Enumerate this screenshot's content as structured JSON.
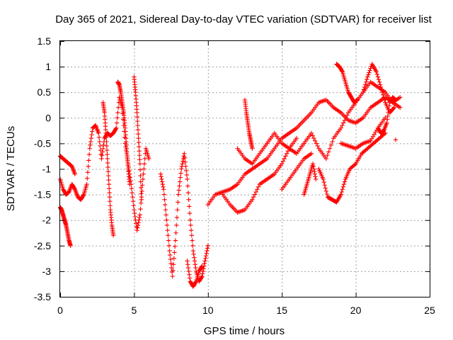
{
  "chart_data": {
    "type": "scatter",
    "title": "Day 365 of 2021, Sidereal Day-to-day VTEC variation (SDTVAR) for receiver list",
    "xlabel": "GPS time / hours",
    "ylabel": "SDTVAR / TECUs",
    "xlim": [
      0,
      25
    ],
    "ylim": [
      -3.5,
      1.5
    ],
    "xticks": [
      0,
      5,
      10,
      15,
      20,
      25
    ],
    "yticks": [
      -3.5,
      -3,
      -2.5,
      -2,
      -1.5,
      -1,
      -0.5,
      0,
      0.5,
      1,
      1.5
    ],
    "grid": true,
    "marker": "plus",
    "color": "#ff0000",
    "series": [
      {
        "x": [
          0,
          0.2,
          0.4,
          0.6,
          0.8,
          1.0,
          1.2,
          1.4,
          1.6,
          1.8,
          2.0,
          2.2,
          2.4,
          2.6,
          2.8,
          3.0,
          3.2,
          3.4,
          3.6,
          3.8,
          4.0,
          4.2,
          4.4,
          4.6,
          4.8,
          5.0,
          5.2,
          5.4,
          5.6,
          5.8,
          6.0
        ],
        "y": [
          -1.2,
          -1.4,
          -1.5,
          -1.45,
          -1.3,
          -1.4,
          -1.55,
          -1.6,
          -1.5,
          -1.3,
          -0.6,
          -0.2,
          -0.15,
          -0.3,
          -0.8,
          -0.4,
          -0.3,
          -0.35,
          -0.3,
          -0.2,
          0.4,
          0.2,
          -0.5,
          -0.9,
          -1.3,
          -1.8,
          -2.2,
          -1.9,
          -1.2,
          -0.6,
          -0.8
        ]
      },
      {
        "x": [
          0,
          0.1,
          0.2,
          0.3,
          0.4,
          0.5,
          0.6,
          0.7
        ],
        "y": [
          -1.75,
          -1.8,
          -1.9,
          -2.0,
          -2.1,
          -2.25,
          -2.4,
          -2.5
        ]
      },
      {
        "x": [
          0,
          0.2,
          0.4,
          0.6,
          0.8,
          1.0
        ],
        "y": [
          -0.75,
          -0.8,
          -0.85,
          -0.9,
          -0.95,
          -1.1
        ]
      },
      {
        "x": [
          2.9,
          3.0,
          3.1,
          3.2,
          3.3,
          3.4,
          3.5,
          3.6
        ],
        "y": [
          0.3,
          0.1,
          -0.3,
          -0.8,
          -1.3,
          -1.8,
          -2.1,
          -2.3
        ]
      },
      {
        "x": [
          3.9,
          4.0,
          4.1,
          4.2,
          4.3,
          4.4,
          4.5,
          4.6,
          4.7
        ],
        "y": [
          0.7,
          0.65,
          0.5,
          0.3,
          0.1,
          -0.2,
          -0.6,
          -1.0,
          -1.3
        ]
      },
      {
        "x": [
          5.0,
          5.1,
          5.2,
          5.3,
          5.4,
          5.5
        ],
        "y": [
          0.8,
          0.5,
          0.1,
          -0.4,
          -0.9,
          -1.6
        ]
      },
      {
        "x": [
          6.8,
          7.0,
          7.2,
          7.4,
          7.6,
          7.8,
          8.0,
          8.2,
          8.4,
          8.6,
          8.8,
          9.0,
          9.2,
          9.4,
          9.6,
          9.8,
          10.0
        ],
        "y": [
          -1.1,
          -1.4,
          -2.0,
          -2.6,
          -3.1,
          -2.4,
          -1.5,
          -1.0,
          -0.7,
          -1.2,
          -2.0,
          -2.6,
          -3.0,
          -3.2,
          -3.1,
          -2.8,
          -2.5
        ]
      },
      {
        "x": [
          8.6,
          8.8,
          9.0,
          9.2,
          9.4,
          9.6
        ],
        "y": [
          -2.8,
          -3.2,
          -3.3,
          -3.2,
          -3.0,
          -2.9
        ]
      },
      {
        "x": [
          10.0,
          10.5,
          11.0,
          11.5,
          12.0,
          12.5,
          13.0,
          13.5,
          14.0,
          14.5,
          15.0,
          15.5,
          16.0,
          16.5,
          17.0,
          17.5,
          18.0,
          18.5,
          19.0,
          19.5,
          20.0,
          20.5,
          21.0,
          21.5,
          22.0,
          22.5,
          23.0
        ],
        "y": [
          -1.7,
          -1.5,
          -1.45,
          -1.4,
          -1.3,
          -1.1,
          -1.0,
          -0.9,
          -0.8,
          -0.6,
          -0.4,
          -0.3,
          -0.2,
          -0.05,
          0.1,
          0.3,
          0.35,
          0.2,
          0.1,
          -0.05,
          -0.1,
          0.0,
          0.2,
          0.3,
          0.4,
          0.3,
          0.4
        ]
      },
      {
        "x": [
          11.0,
          11.5,
          12.0,
          12.5,
          13.0,
          13.5,
          14.0,
          14.5,
          15.0,
          15.5,
          16.0,
          16.5,
          17.0,
          17.5,
          18.0,
          18.5,
          19.0,
          19.5,
          20.0,
          20.5,
          21.0,
          21.5,
          22.0,
          22.5,
          23.0
        ],
        "y": [
          -1.5,
          -1.7,
          -1.85,
          -1.8,
          -1.6,
          -1.3,
          -1.2,
          -1.1,
          -0.9,
          -0.6,
          -0.7,
          -0.5,
          -0.3,
          -0.6,
          -0.8,
          -0.4,
          -0.2,
          0.1,
          0.3,
          0.5,
          0.7,
          0.6,
          0.5,
          0.3,
          0.2
        ]
      },
      {
        "x": [
          12.0,
          12.5,
          13.0,
          13.5,
          14.0,
          14.5,
          15.0,
          15.5,
          16.0
        ],
        "y": [
          -0.6,
          -0.8,
          -0.9,
          -0.7,
          -0.5,
          -0.3,
          -0.5,
          -0.6,
          -0.4
        ]
      },
      {
        "x": [
          12.5,
          12.6,
          12.7,
          12.8,
          12.9,
          13.0
        ],
        "y": [
          0.35,
          0.1,
          -0.1,
          -0.3,
          -0.45,
          -0.6
        ]
      },
      {
        "x": [
          15.0,
          15.5,
          16.0,
          16.5,
          17.0
        ],
        "y": [
          -1.4,
          -1.2,
          -1.0,
          -0.8,
          -0.7
        ]
      },
      {
        "x": [
          16.5,
          16.7,
          16.9,
          17.1,
          17.3
        ],
        "y": [
          -1.5,
          -1.3,
          -1.1,
          -0.9,
          -1.2
        ]
      },
      {
        "x": [
          17.5,
          17.8,
          18.1,
          18.4,
          18.7,
          19.0,
          19.3,
          19.6,
          20.0,
          20.4,
          20.8,
          21.2,
          21.6,
          22.0
        ],
        "y": [
          -1.0,
          -1.2,
          -1.55,
          -1.6,
          -1.65,
          -1.5,
          -1.2,
          -1.0,
          -0.9,
          -0.7,
          -0.6,
          -0.5,
          -0.4,
          -0.3
        ]
      },
      {
        "x": [
          18.7,
          18.9,
          19.1,
          19.3,
          19.5,
          19.7,
          19.9,
          20.1
        ],
        "y": [
          1.05,
          1.0,
          0.9,
          0.7,
          0.5,
          0.4,
          0.3,
          0.35
        ]
      },
      {
        "x": [
          19.0,
          19.5,
          20.0,
          20.5,
          21.0,
          21.5,
          22.0
        ],
        "y": [
          -0.5,
          -0.55,
          -0.6,
          -0.5,
          -0.45,
          -0.2,
          0.0
        ]
      },
      {
        "x": [
          20.5,
          20.8,
          21.1,
          21.4,
          21.7,
          22.0,
          22.3,
          22.6
        ],
        "y": [
          0.5,
          0.8,
          1.05,
          0.9,
          0.6,
          0.3,
          0.1,
          0.2
        ]
      },
      {
        "x": [
          21.5,
          21.7,
          21.9,
          22.1,
          22.3,
          22.5,
          22.7
        ],
        "y": [
          -0.2,
          -0.3,
          -0.25,
          -0.1,
          0.3,
          0.4,
          0.35
        ]
      },
      {
        "x": [
          22.7
        ],
        "y": [
          -0.43
        ]
      }
    ]
  }
}
